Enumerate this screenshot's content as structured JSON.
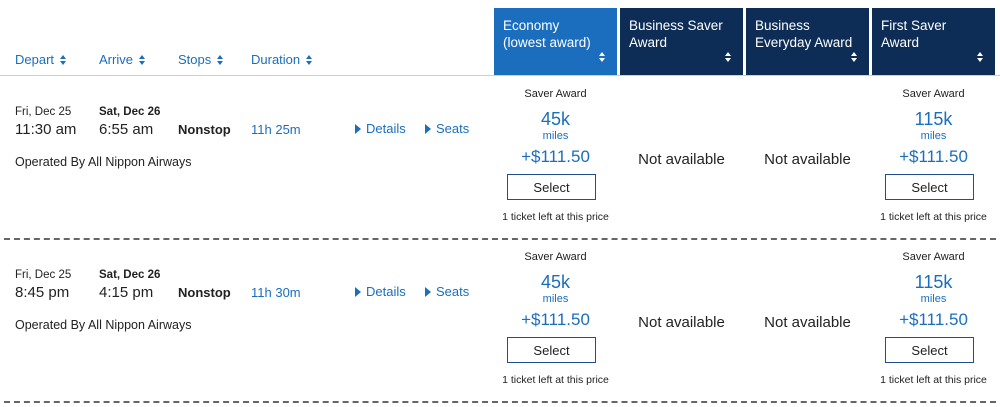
{
  "header": {
    "columns": [
      "Depart",
      "Arrive",
      "Stops",
      "Duration"
    ],
    "fare_columns": [
      {
        "label": "Economy (lowest award)",
        "line1": "Economy",
        "line2": "(lowest award)",
        "color": "#1a6ebd"
      },
      {
        "label": "Business Saver Award",
        "line1": "Business Saver",
        "line2": "Award",
        "color": "#0d2d57"
      },
      {
        "label": "Business Everyday Award",
        "line1": "Business",
        "line2": "Everyday Award",
        "color": "#0d2d57"
      },
      {
        "label": "First Saver Award",
        "line1": "First Saver Award",
        "line2": "",
        "color": "#0d2d57"
      }
    ]
  },
  "flights": [
    {
      "depart_date": "Fri, Dec 25",
      "depart_time": "11:30 am",
      "arrive_date": "Sat, Dec 26",
      "arrive_time": "6:55 am",
      "stops": "Nonstop",
      "duration": "11h 25m",
      "operated_by": "Operated By All Nippon Airways",
      "details_label": "Details",
      "seats_label": "Seats",
      "fares": [
        {
          "type": "Saver Award",
          "miles": "45k",
          "miles_unit": "miles",
          "price": "+$111.50",
          "select_label": "Select",
          "note": "1 ticket left at this price"
        },
        {
          "not_available": "Not available"
        },
        {
          "not_available": "Not available"
        },
        {
          "type": "Saver Award",
          "miles": "115k",
          "miles_unit": "miles",
          "price": "+$111.50",
          "select_label": "Select",
          "note": "1 ticket left at this price"
        }
      ]
    },
    {
      "depart_date": "Fri, Dec 25",
      "depart_time": "8:45 pm",
      "arrive_date": "Sat, Dec 26",
      "arrive_time": "4:15 pm",
      "stops": "Nonstop",
      "duration": "11h 30m",
      "operated_by": "Operated By All Nippon Airways",
      "details_label": "Details",
      "seats_label": "Seats",
      "fares": [
        {
          "type": "Saver Award",
          "miles": "45k",
          "miles_unit": "miles",
          "price": "+$111.50",
          "select_label": "Select",
          "note": "1 ticket left at this price"
        },
        {
          "not_available": "Not available"
        },
        {
          "not_available": "Not available"
        },
        {
          "type": "Saver Award",
          "miles": "115k",
          "miles_unit": "miles",
          "price": "+$111.50",
          "select_label": "Select",
          "note": "1 ticket left at this price"
        }
      ]
    }
  ]
}
